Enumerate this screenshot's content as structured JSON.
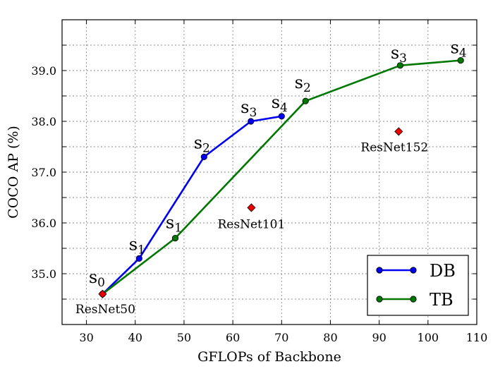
{
  "chart_data": {
    "type": "line",
    "xlabel": "GFLOPs of Backbone",
    "ylabel": "COCO AP (%)",
    "xlim": [
      25,
      110
    ],
    "ylim": [
      34.0,
      40.0
    ],
    "xticks": [
      30,
      40,
      50,
      60,
      70,
      80,
      90,
      100,
      110
    ],
    "xtick_labels": [
      "30",
      "40",
      "50",
      "60",
      "70",
      "80",
      "90",
      "100",
      "110"
    ],
    "yticks": [
      35.0,
      36.0,
      37.0,
      38.0,
      39.0
    ],
    "ytick_labels": [
      "35.0",
      "36.0",
      "37.0",
      "38.0",
      "39.0"
    ],
    "grid": true,
    "legend_position": "bottom-right",
    "series": [
      {
        "name": "DB",
        "color": "#0000ee",
        "x": [
          33.3,
          40.8,
          54.1,
          63.7,
          70.0
        ],
        "y": [
          34.6,
          35.3,
          37.3,
          38.0,
          38.1
        ],
        "labels": [
          "s0",
          "s1",
          "s2",
          "s3",
          "s4"
        ]
      },
      {
        "name": "TB",
        "color": "#007700",
        "x": [
          33.3,
          48.2,
          74.9,
          94.3,
          106.7
        ],
        "y": [
          34.6,
          35.7,
          38.4,
          39.1,
          39.2
        ],
        "labels": [
          "",
          "s1",
          "s2",
          "s3",
          "s4"
        ]
      }
    ],
    "reference_points": [
      {
        "name": "ResNet50",
        "x": 33.3,
        "y": 34.6
      },
      {
        "name": "ResNet101",
        "x": 63.8,
        "y": 36.3
      },
      {
        "name": "ResNet152",
        "x": 94.0,
        "y": 37.8
      }
    ],
    "marker_colors": {
      "reference": "#ee0000"
    }
  }
}
